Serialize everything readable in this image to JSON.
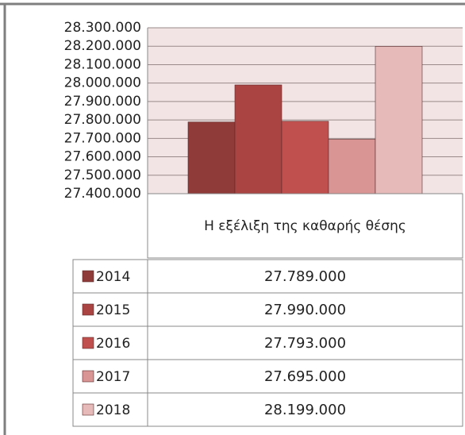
{
  "chart_data": {
    "type": "bar",
    "categories": [
      "Η εξέλιξη της καθαρής θέσης"
    ],
    "series": [
      {
        "name": "2014",
        "color": "#8e3b3a",
        "values": [
          27789000
        ],
        "value_labels": [
          "27.789.000"
        ]
      },
      {
        "name": "2015",
        "color": "#aa4443",
        "values": [
          27990000
        ],
        "value_labels": [
          "27.990.000"
        ]
      },
      {
        "name": "2016",
        "color": "#c0504d",
        "values": [
          27793000
        ],
        "value_labels": [
          "27.793.000"
        ]
      },
      {
        "name": "2017",
        "color": "#d89594",
        "values": [
          27695000
        ],
        "value_labels": [
          "27.695.000"
        ]
      },
      {
        "name": "2018",
        "color": "#e6bab9",
        "values": [
          28199000
        ],
        "value_labels": [
          "28.199.000"
        ]
      }
    ],
    "ylim": [
      27400000,
      28300000
    ],
    "yticks": [
      {
        "value": 27400000,
        "label": "27.400.000"
      },
      {
        "value": 27500000,
        "label": "27.500.000"
      },
      {
        "value": 27600000,
        "label": "27.600.000"
      },
      {
        "value": 27700000,
        "label": "27.700.000"
      },
      {
        "value": 27800000,
        "label": "27.800.000"
      },
      {
        "value": 27900000,
        "label": "27.900.000"
      },
      {
        "value": 28000000,
        "label": "28.000.000"
      },
      {
        "value": 28100000,
        "label": "28.100.000"
      },
      {
        "value": 28200000,
        "label": "28.200.000"
      },
      {
        "value": 28300000,
        "label": "28.300.000"
      }
    ],
    "grid": true
  }
}
